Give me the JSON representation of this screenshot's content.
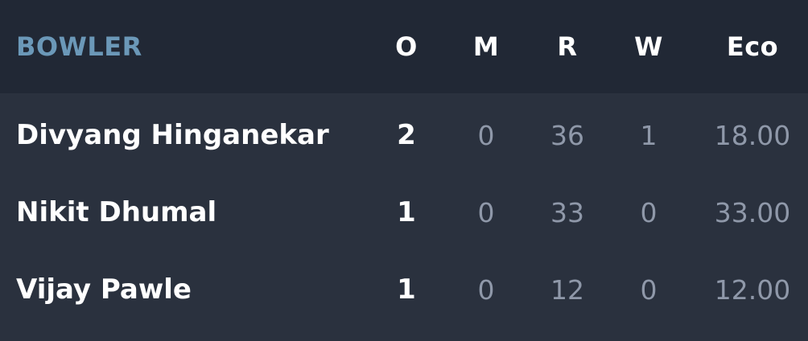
{
  "table": {
    "headers": {
      "bowler": "BOWLER",
      "overs": "O",
      "maidens": "M",
      "runs": "R",
      "wickets": "W",
      "economy": "Eco"
    },
    "rows": [
      {
        "name": "Divyang Hinganekar",
        "overs": "2",
        "maidens": "0",
        "runs": "36",
        "wickets": "1",
        "economy": "18.00"
      },
      {
        "name": "Nikit Dhumal",
        "overs": "1",
        "maidens": "0",
        "runs": "33",
        "wickets": "0",
        "economy": "33.00"
      },
      {
        "name": "Vijay Pawle",
        "overs": "1",
        "maidens": "0",
        "runs": "12",
        "wickets": "0",
        "economy": "12.00"
      }
    ]
  },
  "colors": {
    "header_bg": "#212835",
    "body_bg": "#2a313e",
    "header_label": "#6b98b8",
    "primary_text": "#ffffff",
    "muted_text": "#8f98a9"
  }
}
